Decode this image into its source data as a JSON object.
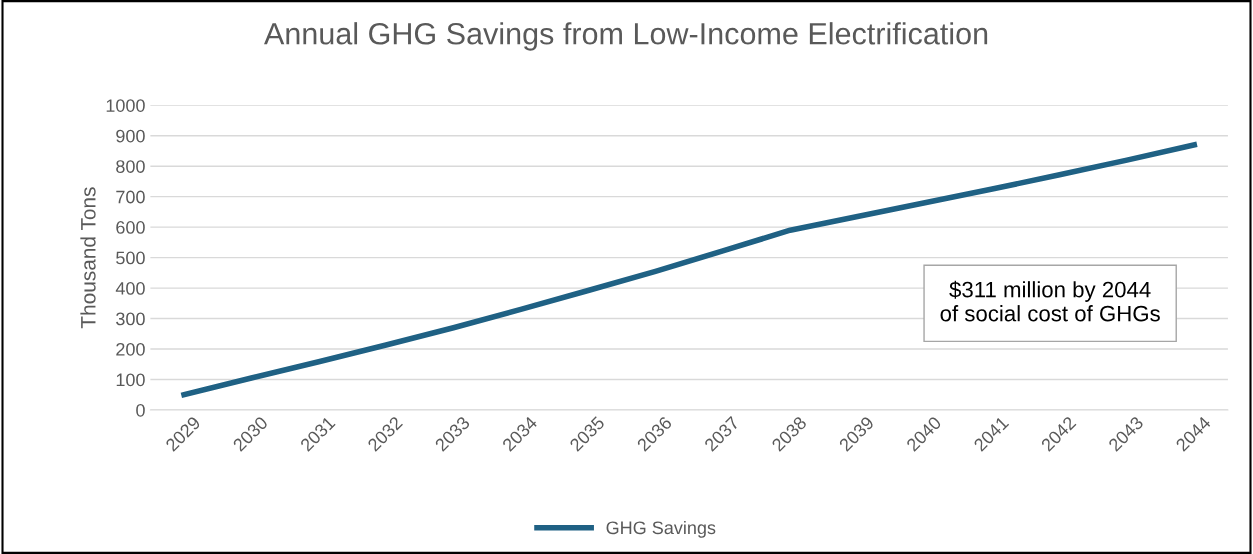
{
  "chart_data": {
    "type": "line",
    "title": "Annual GHG Savings from Low-Income Electrification",
    "ylabel": "Thousand Tons",
    "categories": [
      "2029",
      "2030",
      "2031",
      "2032",
      "2033",
      "2034",
      "2035",
      "2036",
      "2037",
      "2038",
      "2039",
      "2040",
      "2041",
      "2042",
      "2043",
      "2044"
    ],
    "series": [
      {
        "name": "GHG Savings",
        "color": "#1f6184",
        "values": [
          50,
          105,
          158,
          213,
          270,
          330,
          392,
          455,
          522,
          590,
          635,
          680,
          725,
          772,
          820,
          870
        ]
      }
    ],
    "ylim": [
      0,
      1000
    ],
    "yticks": [
      0,
      100,
      200,
      300,
      400,
      500,
      600,
      700,
      800,
      900,
      1000
    ],
    "grid": "y",
    "legend": "bottom",
    "marker": "none",
    "line_style": "solid",
    "annotations": [
      "$311 million by 2044\nof social cost of GHGs"
    ]
  }
}
